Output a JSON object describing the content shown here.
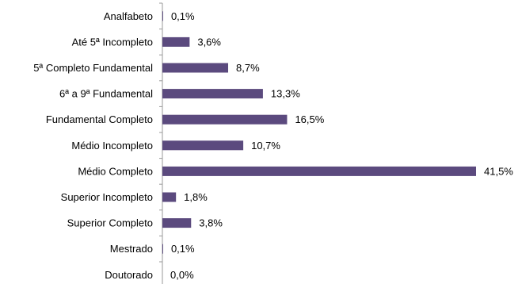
{
  "chart_data": {
    "type": "bar",
    "orientation": "horizontal",
    "categories": [
      "Analfabeto",
      "Até 5ª Incompleto",
      "5ª Completo Fundamental",
      "6ª a 9ª Fundamental",
      "Fundamental Completo",
      "Médio Incompleto",
      "Médio Completo",
      "Superior Incompleto",
      "Superior Completo",
      "Mestrado",
      "Doutorado"
    ],
    "values": [
      0.1,
      3.6,
      8.7,
      13.3,
      16.5,
      10.7,
      41.5,
      1.8,
      3.8,
      0.1,
      0.0
    ],
    "value_labels": [
      "0,1%",
      "3,6%",
      "8,7%",
      "13,3%",
      "16,5%",
      "10,7%",
      "41,5%",
      "1,8%",
      "3,8%",
      "0,1%",
      "0,0%"
    ],
    "title": "",
    "xlabel": "",
    "ylabel": "",
    "xlim": [
      0,
      41.5
    ],
    "grid": false,
    "legend": "none",
    "bar_color": "#5b4a7e",
    "axis_color": "#9a9a9a"
  }
}
